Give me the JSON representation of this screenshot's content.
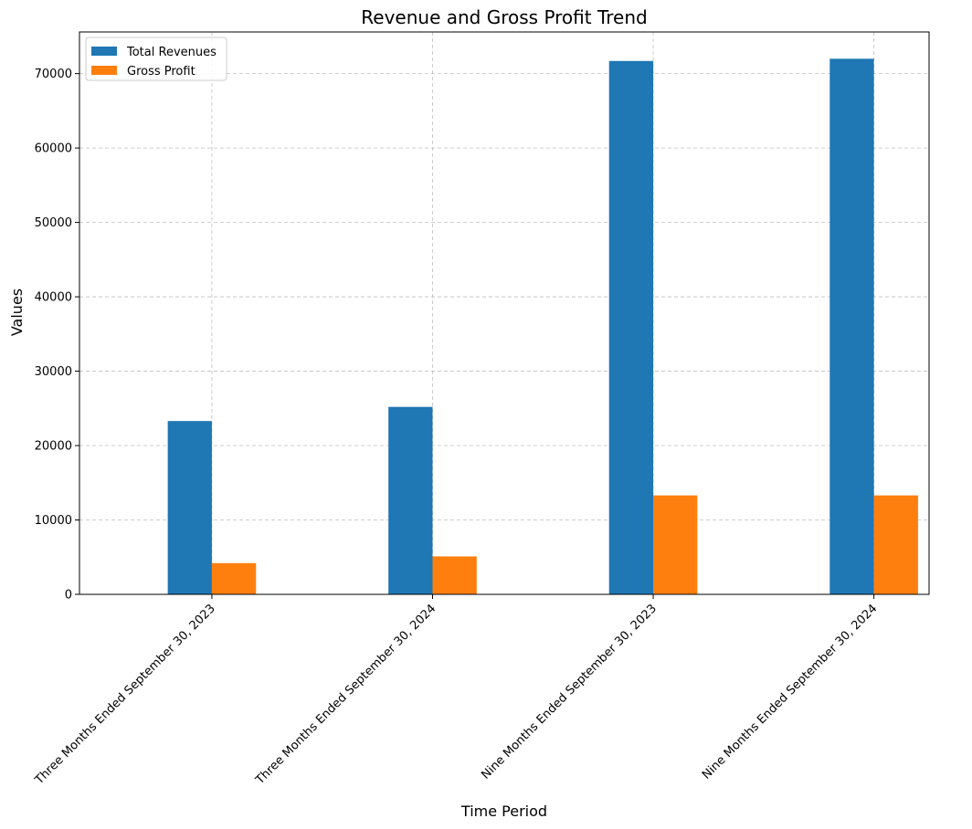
{
  "chart_data": {
    "type": "bar",
    "title": "Revenue and Gross Profit Trend",
    "xlabel": "Time Period",
    "ylabel": "Values",
    "categories": [
      "Three Months Ended September 30, 2023",
      "Three Months Ended September 30, 2024",
      "Nine Months Ended September 30, 2023",
      "Nine Months Ended September 30, 2024"
    ],
    "series": [
      {
        "name": "Total Revenues",
        "color": "#1f77b4",
        "values": [
          23300,
          25200,
          71700,
          72000
        ]
      },
      {
        "name": "Gross Profit",
        "color": "#ff7f0e",
        "values": [
          4200,
          5100,
          13300,
          13300
        ]
      }
    ],
    "ylim": [
      0,
      75600
    ],
    "yticks": [
      0,
      10000,
      20000,
      30000,
      40000,
      50000,
      60000,
      70000
    ],
    "grid": true,
    "legend": "top-left"
  }
}
